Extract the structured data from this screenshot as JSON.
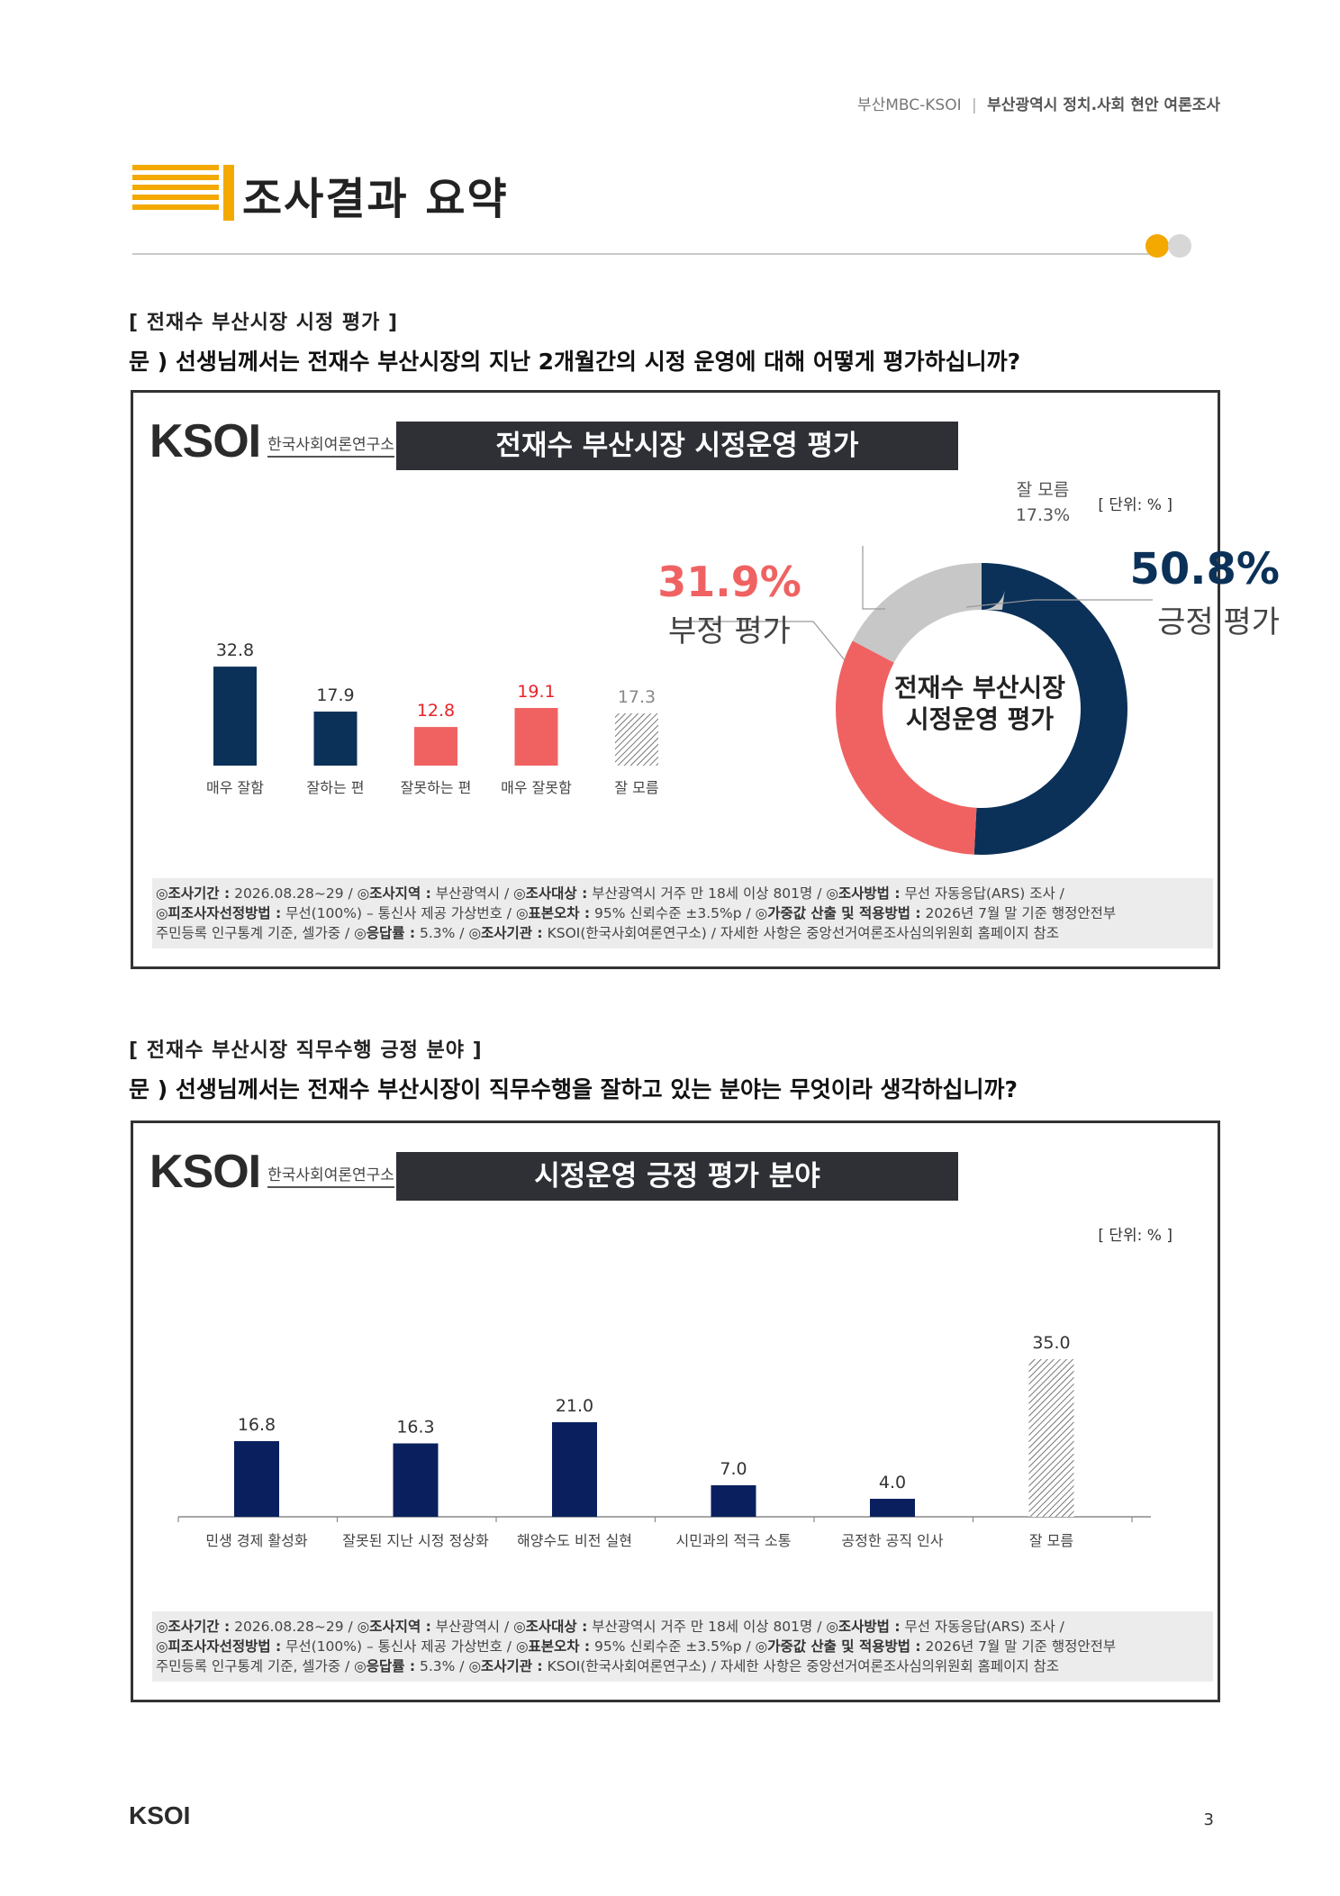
{
  "header": {
    "left": "부산MBC-KSOI",
    "separator": "|",
    "right": "부산광역시 정치.사회 현안 여론조사"
  },
  "page_title": "조사결과 요약",
  "section1": {
    "title": "[ 전재수 부산시장 시정 평가 ]",
    "question": "문 )   선생님께서는 전재수 부산시장의 지난 2개월간의 시정 운영에 대해 어떻게 평가하십니까?",
    "logo_text": "KSOI",
    "logo_sub": "한국사회여론연구소",
    "banner": "전재수 부산시장 시정운영 평가",
    "unit": "[ 단위: % ]",
    "donut_center_line1": "전재수 부산시장",
    "donut_center_line2": "시정운영 평가",
    "neg_pct": "31.9%",
    "neg_label": "부정 평가",
    "pos_pct": "50.8%",
    "pos_label": "긍정 평가",
    "dk_label": "잘 모름",
    "dk_pct": "17.3%"
  },
  "section2": {
    "title": "[ 전재수 부산시장 직무수행 긍정 분야 ]",
    "question": "문 )   선생님께서는 전재수 부산시장이 직무수행을 잘하고 있는 분야는 무엇이라 생각하십니까?",
    "logo_text": "KSOI",
    "logo_sub": "한국사회여론연구소",
    "banner": "시정운영 긍정 평가 분야",
    "unit": "[ 단위: % ]"
  },
  "footnote": {
    "l1_k1": "◎조사기간 :",
    "l1_v1": " 2026.08.28~29 / ",
    "l1_k2": "◎조사지역 :",
    "l1_v2": " 부산광역시 / ",
    "l1_k3": "◎조사대상 :",
    "l1_v3": " 부산광역시 거주 만 18세 이상 801명 / ",
    "l1_k4": "◎조사방법 :",
    "l1_v4": " 무선 자동응답(ARS) 조사 /",
    "l2_k1": "◎피조사자선정방법 :",
    "l2_v1": " 무선(100%) – 통신사 제공 가상번호 / ",
    "l2_k2": "◎표본오차 :",
    "l2_v2": " 95% 신뢰수준 ±3.5%p / ",
    "l2_k3": "◎가중값 산출 및 적용방법 :",
    "l2_v3": " 2026년 7월 말 기준 행정안전부",
    "l3_v1": "주민등록 인구통계 기준, 셀가중 / ",
    "l3_k2": "◎응답률 :",
    "l3_v2": " 5.3% / ",
    "l3_k3": "◎조사기관 :",
    "l3_v3": " KSOI(한국사회여론연구소) / 자세한 사항은 중앙선거여론조사심의위원회 홈페이지 참조"
  },
  "footer": {
    "logo": "KSOI",
    "page_number": "3"
  },
  "colors": {
    "navy": "#0b3158",
    "navy2": "#0a205e",
    "red": "#f06262",
    "red_text": "#e8232a",
    "gray": "#c7c7c7",
    "accent": "#f3a900"
  },
  "chart_data": [
    {
      "type": "bar",
      "title": "전재수 부산시장 시정운영 평가",
      "categories": [
        "매우 잘함",
        "잘하는 편",
        "잘못하는 편",
        "매우 잘못함",
        "잘 모름"
      ],
      "values": [
        32.8,
        17.9,
        12.8,
        19.1,
        17.3
      ],
      "value_labels": [
        "32.8",
        "17.9",
        "12.8",
        "19.1",
        "17.3"
      ],
      "bar_styles": [
        "navy",
        "navy",
        "red",
        "red",
        "hatch"
      ],
      "label_colors": [
        "#333333",
        "#333333",
        "#e8232a",
        "#e8232a",
        "#888888"
      ],
      "ylim": [
        0,
        40
      ]
    },
    {
      "type": "pie",
      "title": "전재수 부산시장 시정운영 평가",
      "labels": [
        "긍정 평가",
        "부정 평가",
        "잘 모름"
      ],
      "values": [
        50.8,
        31.9,
        17.3
      ],
      "colors": [
        "#0b3158",
        "#f06262",
        "#c7c7c7"
      ],
      "donut": true
    },
    {
      "type": "bar",
      "title": "시정운영 긍정 평가 분야",
      "categories": [
        "민생 경제 활성화",
        "잘못된 지난 시정 정상화",
        "해양수도 비전 실현",
        "시민과의 적극 소통",
        "공정한 공직 인사",
        "잘 모름"
      ],
      "values": [
        16.8,
        16.3,
        21.0,
        7.0,
        4.0,
        35.0
      ],
      "value_labels": [
        "16.8",
        "16.3",
        "21.0",
        "7.0",
        "4.0",
        "35.0"
      ],
      "bar_styles": [
        "navy2",
        "navy2",
        "navy2",
        "navy2",
        "navy2",
        "hatch"
      ],
      "ylim": [
        0,
        40
      ]
    }
  ]
}
